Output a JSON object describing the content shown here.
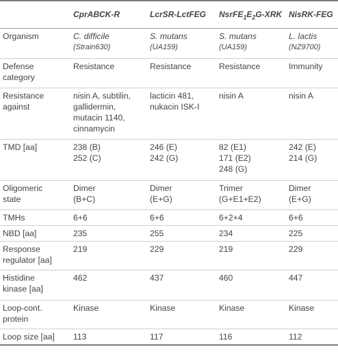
{
  "header": {
    "col0": "",
    "col1": "CprABCK-R",
    "col2": "LcrSR-LctFEG",
    "col3_pre": "NsrFE",
    "col3_sub1": "1",
    "col3_mid": "E",
    "col3_sub2": "2",
    "col3_post": "G-XRK",
    "col4": "NisRK-FEG"
  },
  "rows": {
    "organism": {
      "label": "Organism",
      "c1_name": "C. difficile",
      "c1_strain": "(Strain630)",
      "c2_name": "S. mutans",
      "c2_strain": "(UA159)",
      "c3_name": "S. mutans",
      "c3_strain": "(UA159)",
      "c4_name": "L. lactis",
      "c4_strain": "(NZ9700)"
    },
    "defense": {
      "label1": "Defense",
      "label2": "category",
      "c1": "Resistance",
      "c2": "Resistance",
      "c3": "Resistance",
      "c4": "Immunity"
    },
    "resistance": {
      "label1": "Resistance",
      "label2": "against",
      "c1": [
        "nisin A, subtilin,",
        "gallidermin,",
        "mutacin 1140,",
        "cinnamycin"
      ],
      "c2": [
        "lacticin 481,",
        "nukacin ISK-I"
      ],
      "c3": "nisin A",
      "c4": "nisin A"
    },
    "tmd": {
      "label": "TMD [aa]",
      "c1": [
        "238 (B)",
        "252 (C)"
      ],
      "c2": [
        "246 (E)",
        "242 (G)"
      ],
      "c3": [
        "82 (E1)",
        "171 (E2)",
        "248 (G)"
      ],
      "c4": [
        "242 (E)",
        "214 (G)"
      ]
    },
    "oligomeric": {
      "label1": "Oligomeric",
      "label2": "state",
      "c1": [
        "Dimer",
        "(B+C)"
      ],
      "c2": [
        "Dimer",
        "(E+G)"
      ],
      "c3": [
        "Trimer",
        "(G+E1+E2)"
      ],
      "c4": [
        "Dimer",
        "(E+G)"
      ]
    },
    "tmhs": {
      "label": "TMHs",
      "c1": "6+6",
      "c2": "6+6",
      "c3": "6+2+4",
      "c4": "6+6"
    },
    "nbd": {
      "label": "NBD [aa]",
      "c1": "235",
      "c2": "255",
      "c3": "234",
      "c4": "225"
    },
    "response": {
      "label1": "Response",
      "label2": "regulator [aa]",
      "c1": "219",
      "c2": "229",
      "c3": "219",
      "c4": "229"
    },
    "histidine": {
      "label1": "Histidine",
      "label2": "kinase [aa]",
      "c1": "462",
      "c2": "437",
      "c3": "460",
      "c4": "447"
    },
    "loopcont": {
      "label1": "Loop-cont.",
      "label2": "protein",
      "c1": "Kinase",
      "c2": "Kinase",
      "c3": "Kinase",
      "c4": "Kinase"
    },
    "loopsize": {
      "label": "Loop size [aa]",
      "c1": "113",
      "c2": "117",
      "c3": "116",
      "c4": "112"
    }
  }
}
